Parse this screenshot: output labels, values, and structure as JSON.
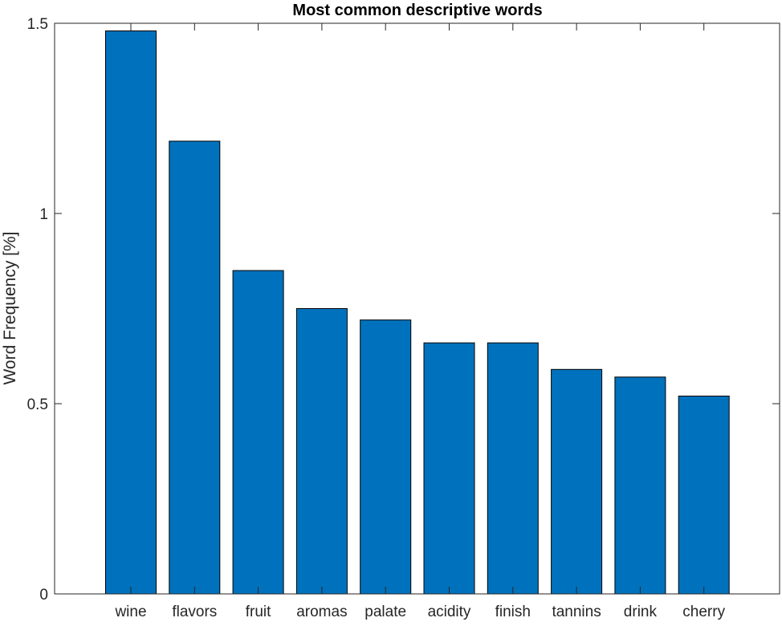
{
  "chart_data": {
    "type": "bar",
    "title": "Most common descriptive words",
    "xlabel": "",
    "ylabel": "Word Frequency [%]",
    "categories": [
      "wine",
      "flavors",
      "fruit",
      "aromas",
      "palate",
      "acidity",
      "finish",
      "tannins",
      "drink",
      "cherry"
    ],
    "values": [
      1.48,
      1.19,
      0.85,
      0.75,
      0.72,
      0.66,
      0.66,
      0.59,
      0.57,
      0.52
    ],
    "ylim": [
      0,
      1.5
    ],
    "yticks": [
      0,
      0.5,
      1,
      1.5
    ],
    "ytick_labels": [
      "0",
      "0.5",
      "1",
      "1.5"
    ],
    "grid": false,
    "legend": "none",
    "colors": {
      "bar_fill": "#0072BD",
      "bar_edge": "#000000",
      "axis": "#262626"
    }
  }
}
